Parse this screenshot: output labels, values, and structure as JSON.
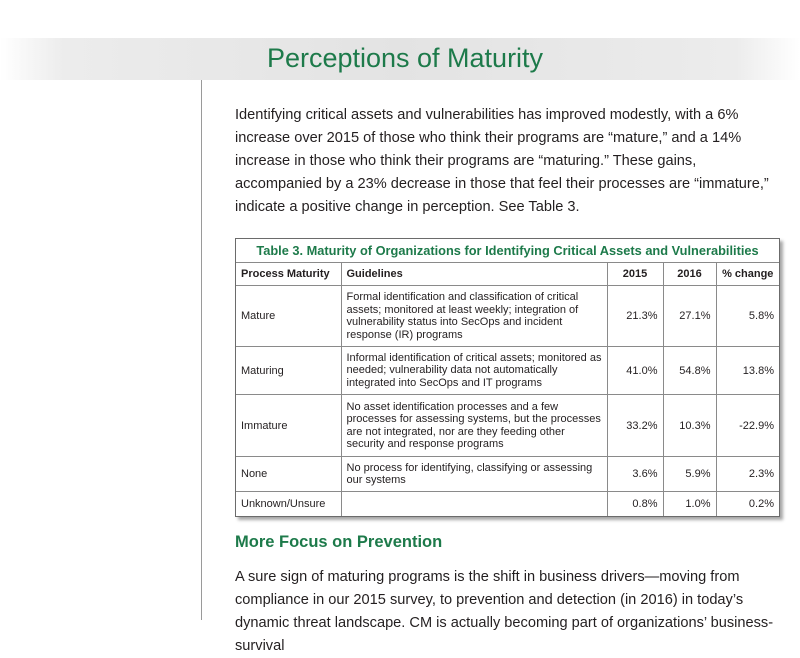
{
  "page": {
    "title": "Perceptions of Maturity",
    "intro": "Identifying critical assets and vulnerabilities has improved modestly, with a 6% increase over 2015 of those who think their programs are “mature,” and a 14% increase in those who think their programs are “maturing.” These gains, accompanied by a 23% decrease in those that feel their processes are “immature,” indicate a positive change in perception. See Table 3."
  },
  "table": {
    "caption": "Table 3. Maturity of Organizations for Identifying Critical Assets and Vulnerabilities",
    "headers": [
      "Process Maturity",
      "Guidelines",
      "2015",
      "2016",
      "% change"
    ],
    "rows": [
      {
        "maturity": "Mature",
        "guidelines": "Formal identification and classification of critical assets; monitored at least weekly; integration of vulnerability status into SecOps and incident response (IR) programs",
        "y2015": "21.3%",
        "y2016": "27.1%",
        "change": "5.8%"
      },
      {
        "maturity": "Maturing",
        "guidelines": "Informal identification of critical assets; monitored as needed; vulnerability data not automatically integrated into SecOps and IT programs",
        "y2015": "41.0%",
        "y2016": "54.8%",
        "change": "13.8%"
      },
      {
        "maturity": "Immature",
        "guidelines": "No asset identification processes and a few processes for assessing systems, but the processes are not integrated, nor are they feeding other security and response programs",
        "y2015": "33.2%",
        "y2016": "10.3%",
        "change": "-22.9%"
      },
      {
        "maturity": "None",
        "guidelines": "No process for identifying, classifying or assessing our systems",
        "y2015": "3.6%",
        "y2016": "5.9%",
        "change": "2.3%"
      },
      {
        "maturity": "Unknown/Unsure",
        "guidelines": "",
        "y2015": "0.8%",
        "y2016": "1.0%",
        "change": "0.2%"
      }
    ]
  },
  "section": {
    "heading": "More Focus on Prevention",
    "body": "A sure sign of maturing programs is the shift in business drivers—moving from compliance in our 2015 survey, to prevention and detection (in 2016) in today’s dynamic threat landscape. CM is actually becoming part of organizations’ business-survival"
  },
  "colors": {
    "accent_green": "#1d7a4a",
    "text": "#231f20",
    "title_band": "#e3e3e3"
  }
}
